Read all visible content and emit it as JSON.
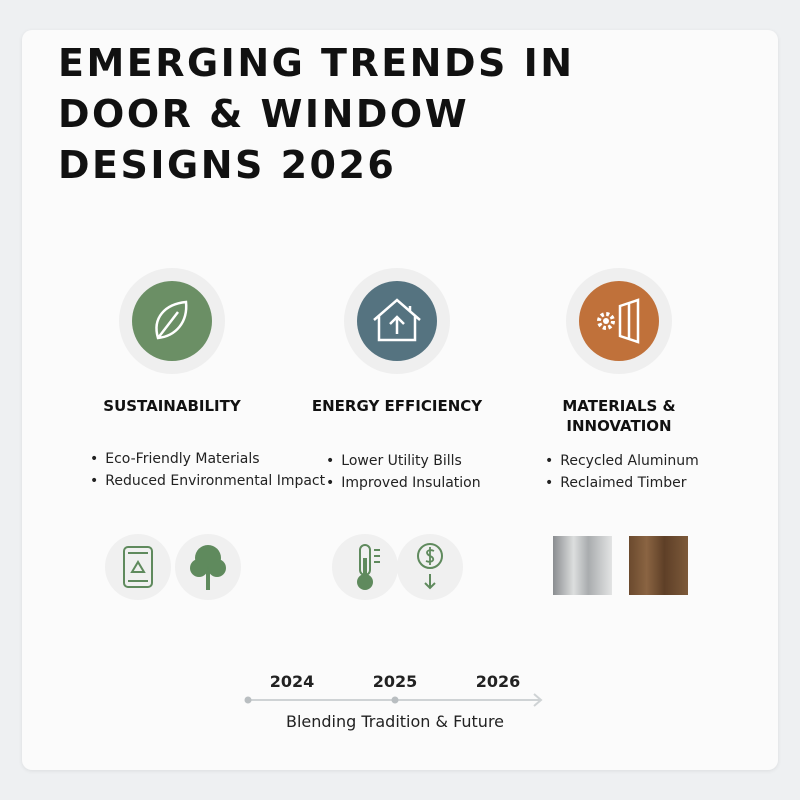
{
  "title": "EMERGING TRENDS IN DOOR & WINDOW DESIGNS 2026",
  "columns": [
    {
      "heading": "SUSTAINABILITY",
      "bullets": [
        "Eco-Friendly Materials",
        "Reduced Environmental Impact"
      ]
    },
    {
      "heading": "ENERGY EFFICIENCY",
      "bullets": [
        "Lower Utility Bills",
        "Improved Insulation"
      ]
    },
    {
      "heading": "MATERIALS & INNOVATION",
      "bullets": [
        "Recycled Aluminum",
        "Reclaimed Timber"
      ]
    }
  ],
  "timeline": {
    "years": [
      "2024",
      "2025",
      "2026"
    ],
    "caption": "Blending Tradition & Future"
  }
}
